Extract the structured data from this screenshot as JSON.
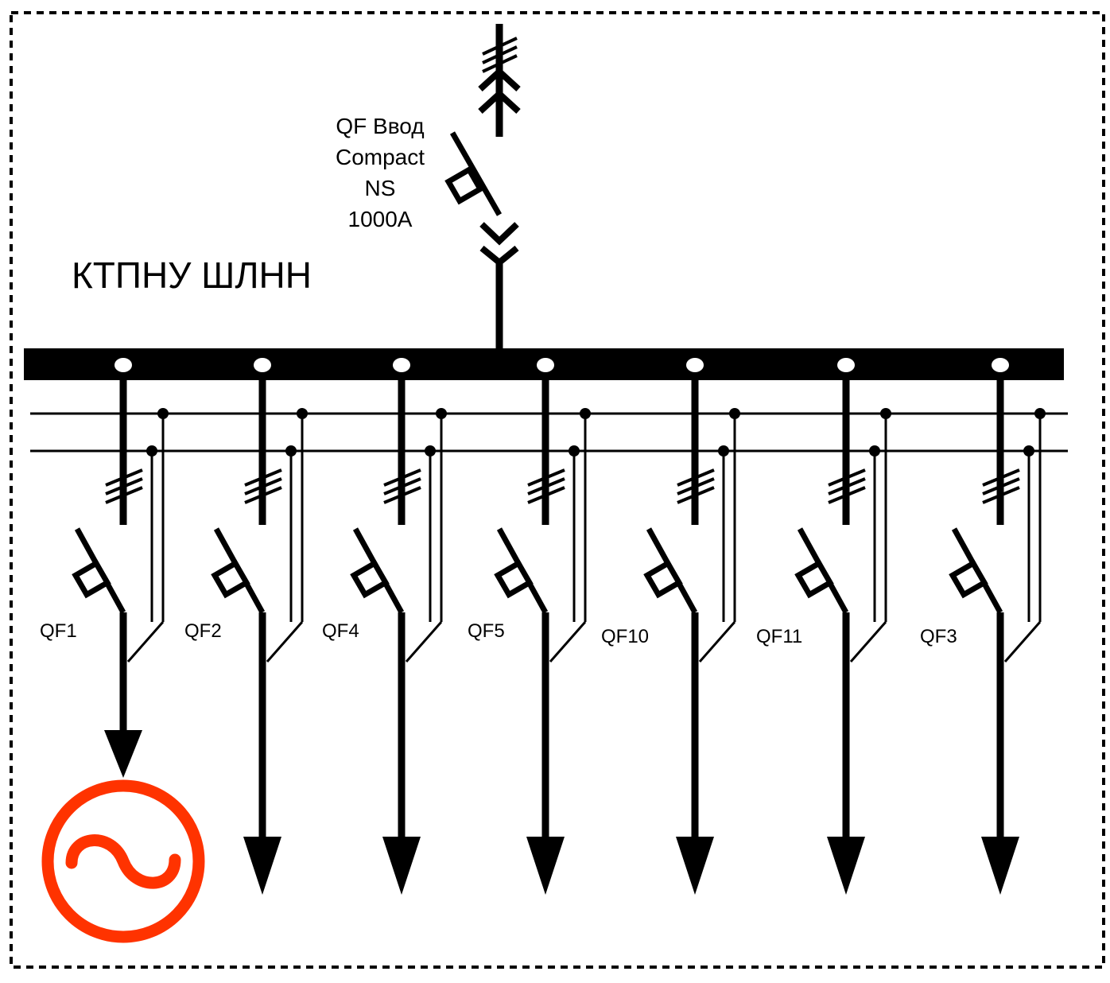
{
  "panel_title": "КТПНУ ШЛНН",
  "incomer": {
    "lines": [
      "QF Ввод",
      "Compact",
      "NS",
      "1000A"
    ]
  },
  "feeders": [
    {
      "label": "QF1",
      "load": "generator"
    },
    {
      "label": "QF2",
      "load": "arrow"
    },
    {
      "label": "QF4",
      "load": "arrow"
    },
    {
      "label": "QF5",
      "load": "arrow"
    },
    {
      "label": "QF10",
      "load": "arrow"
    },
    {
      "label": "QF11",
      "load": "arrow"
    },
    {
      "label": "QF3",
      "load": "arrow"
    }
  ],
  "generator_symbol": {
    "icon": "ac-generator-icon",
    "color": "#ff3300"
  },
  "colors": {
    "line": "#000000",
    "background": "#ffffff"
  }
}
